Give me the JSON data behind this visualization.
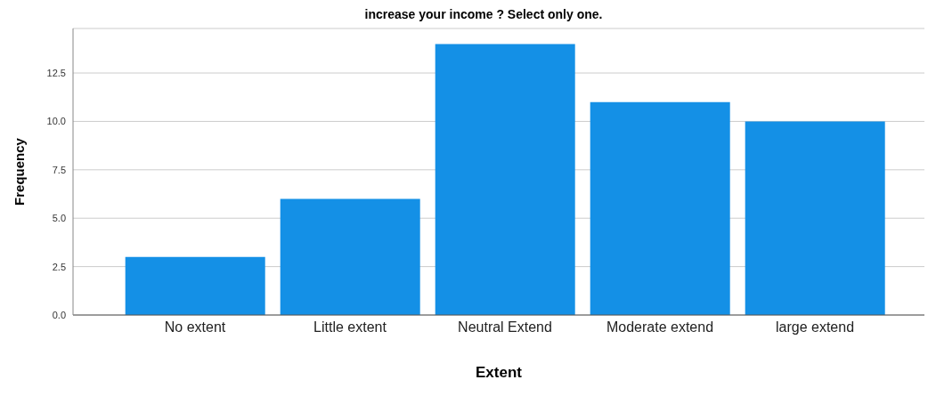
{
  "chart_data": {
    "type": "bar",
    "title": "increase your income ? Select only one.",
    "xlabel": "Extent",
    "ylabel": "Frequency",
    "categories": [
      "No extent",
      "Little extent",
      "Neutral Extend",
      "Moderate extend",
      "large extend"
    ],
    "values": [
      3,
      6,
      14,
      11,
      10
    ],
    "color": "#1490e6",
    "ylim": [
      0,
      14.8
    ],
    "yticks": [
      {
        "value": 0,
        "label": "0.0"
      },
      {
        "value": 2.5,
        "label": "2.5"
      },
      {
        "value": 5,
        "label": "5.0"
      },
      {
        "value": 7.5,
        "label": "7.5"
      },
      {
        "value": 10,
        "label": "10.0"
      },
      {
        "value": 12.5,
        "label": "12.5"
      }
    ],
    "grid": "y"
  }
}
